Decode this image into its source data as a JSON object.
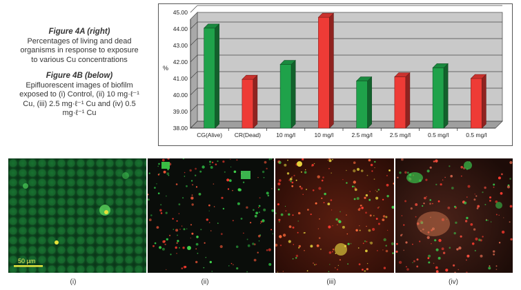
{
  "caption": {
    "fig4a_heading": "Figure 4A (right)",
    "fig4a_lines": [
      "Percentages of living and dead",
      "organisms in response to exposure",
      "to various Cu concentrations"
    ],
    "fig4b_heading": "Figure 4B (below)",
    "fig4b_lines": [
      "Epifluorescent images of biofilm",
      "exposed to (i) Control, (ii) 10 mg·ℓ⁻¹",
      "Cu, (iii) 2.5 mg·ℓ⁻¹ Cu and (iv) 0.5",
      "mg·ℓ⁻¹ Cu"
    ]
  },
  "colors": {
    "alive": "#1fa24a",
    "dead": "#ee3b36",
    "plot_bg": "#c9c9c9"
  },
  "chart_data": {
    "type": "bar",
    "categories": [
      "CG(Alive)",
      "CR(Dead)",
      "10 mg/l",
      "10 mg/l",
      "2.5 mg/l",
      "2.5 mg/l",
      "0.5 mg/l",
      "0.5 mg/l"
    ],
    "values": [
      44.05,
      40.95,
      41.85,
      44.7,
      40.85,
      41.1,
      41.65,
      41.0
    ],
    "bar_status": [
      "alive",
      "dead",
      "alive",
      "dead",
      "alive",
      "dead",
      "alive",
      "dead"
    ],
    "ylabel": "%",
    "ylim": [
      38.0,
      45.0
    ],
    "yticks": [
      "38.00",
      "39.00",
      "40.00",
      "41.00",
      "42.00",
      "43.00",
      "44.00",
      "45.00"
    ],
    "grid": true,
    "bar_style": "3d"
  },
  "images": {
    "panels": [
      {
        "label": "(i)",
        "scale_bar": "50 µm"
      },
      {
        "label": "(ii)"
      },
      {
        "label": "(iii)"
      },
      {
        "label": "(iv)"
      }
    ]
  }
}
